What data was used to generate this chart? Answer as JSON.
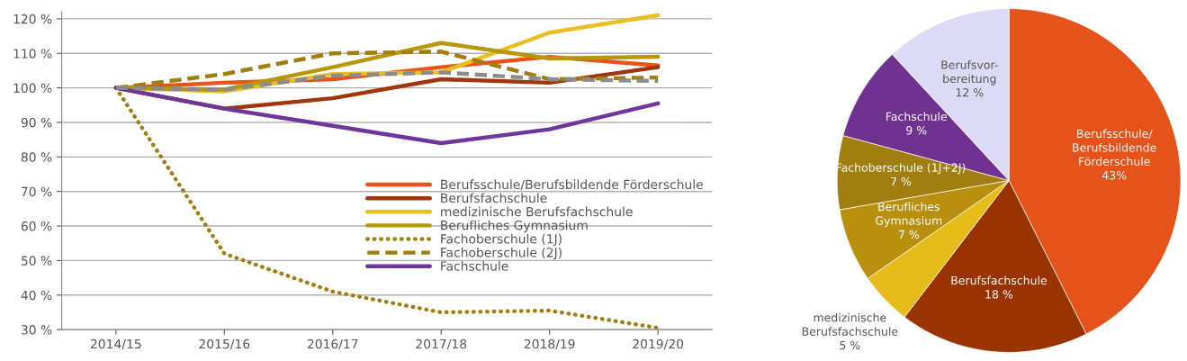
{
  "chart_data": [
    {
      "type": "line",
      "categories": [
        "2014/15",
        "2015/16",
        "2016/17",
        "2017/18",
        "2018/19",
        "2019/20"
      ],
      "series": [
        {
          "name": "Berufsschule/Berufsbildende Förderschule",
          "color": "#e8531a",
          "line_style": "solid",
          "values": [
            100,
            101.5,
            102.5,
            106,
            109,
            106.5
          ]
        },
        {
          "name": "Berufsfachschule",
          "color": "#a0350e",
          "line_style": "solid",
          "values": [
            100,
            94,
            97,
            102.5,
            101.5,
            106
          ]
        },
        {
          "name": "medizinische Berufsfachschule",
          "color": "#e8c020",
          "line_style": "solid",
          "values": [
            100,
            99,
            104,
            104.5,
            116,
            121
          ]
        },
        {
          "name": "Berufliches Gymnasium",
          "color": "#b8960e",
          "line_style": "solid",
          "values": [
            100,
            99.5,
            106,
            113,
            108.5,
            109
          ]
        },
        {
          "name": "Fachoberschule (1J)",
          "color": "#a07e10",
          "line_style": "dotted",
          "values": [
            100,
            52,
            41,
            35,
            35.5,
            30.5
          ]
        },
        {
          "name": "Fachoberschule (2J)",
          "color": "#a07e10",
          "line_style": "dashed",
          "values": [
            100,
            104,
            110,
            110.5,
            102.5,
            103
          ]
        },
        {
          "name": "Fachschule",
          "color": "#70359a",
          "line_style": "solid",
          "values": [
            100,
            94,
            89,
            84,
            88,
            95.5
          ]
        },
        {
          "color": "#8c8c8c",
          "line_style": "dashed",
          "values": [
            100,
            99.5,
            103.5,
            104.5,
            102.5,
            102
          ]
        }
      ],
      "ylim": [
        30,
        122
      ],
      "yticks": [
        {
          "value": 30,
          "label": "30 %"
        },
        {
          "value": 40,
          "label": "40 %"
        },
        {
          "value": 50,
          "label": "50 %"
        },
        {
          "value": 60,
          "label": "60 %"
        },
        {
          "value": 70,
          "label": "70 %"
        },
        {
          "value": 80,
          "label": "80 %"
        },
        {
          "value": 90,
          "label": "90 %"
        },
        {
          "value": 100,
          "label": "100 %"
        },
        {
          "value": 110,
          "label": "110 %"
        },
        {
          "value": 120,
          "label": "120 %"
        }
      ],
      "grid": "y",
      "legend": "bottom right",
      "marker": "none"
    },
    {
      "type": "pie",
      "categories": [
        "Berufsschule/\nBerufsbildende\nFörderschule",
        "Berufsfachschule",
        "medizinische\nBerufsfachschule",
        "Berufliches\nGymnasium",
        "Fachoberschule (1J+2J)",
        "Fachschule",
        "Berufsvor-\nbereitung"
      ],
      "values": [
        43,
        18,
        5,
        7,
        7,
        9,
        12
      ],
      "value_labels": [
        "43%",
        "18 %",
        "5 %",
        "7 %",
        "7 %",
        "9 %",
        "12 %"
      ],
      "colors": [
        "#e5521a",
        "#993300",
        "#e6bc1a",
        "#b8900e",
        "#a07e10",
        "#6f3290",
        "#dcdaf5"
      ]
    }
  ]
}
